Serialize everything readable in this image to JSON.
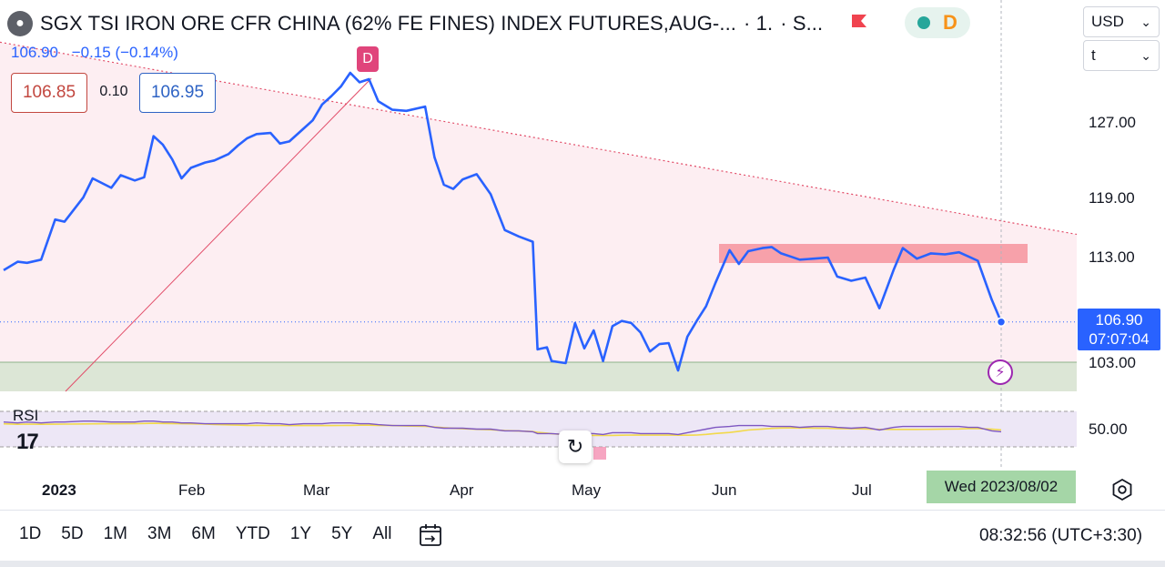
{
  "header": {
    "title": "SGX TSI IRON ORE CFR CHINA (62% FE FINES) INDEX FUTURES,AUG-...",
    "interval": "· 1.",
    "extra": "· S...",
    "last_price": "106.90",
    "change": "−0.15 (−0.14%)",
    "sell_price": "106.85",
    "spread": "0.10",
    "buy_price": "106.95",
    "status_letter": "D"
  },
  "controls": {
    "currency": "USD",
    "unit": "t"
  },
  "price_axis": {
    "labels": [
      "127.00",
      "119.00",
      "113.00",
      "103.00"
    ],
    "current_price": "106.90",
    "countdown": "07:07:04",
    "rsi_label": "50.00"
  },
  "time_axis": {
    "labels": [
      "2023",
      "Feb",
      "Mar",
      "Apr",
      "May",
      "Jun",
      "Jul"
    ],
    "cursor_date": "Wed 2023/08/02"
  },
  "indicators": {
    "rsi_title": "RSI",
    "dividend_badge": "D"
  },
  "bottom_bar": {
    "periods": [
      "1D",
      "5D",
      "1M",
      "3M",
      "6M",
      "YTD",
      "1Y",
      "5Y",
      "All"
    ],
    "clock": "08:32:56 (UTC+3:30)"
  },
  "colors": {
    "price_line": "#2962ff",
    "rsi_line": "#7e57c2",
    "rsi_ma": "#f2d94a",
    "zone_pink": "#fdeef2",
    "zone_green": "#dce6d6",
    "resistance_box": "#f7a1aa",
    "trend_line": "#e24d69"
  },
  "chart_data": {
    "type": "line",
    "ylim": [
      101.5,
      133
    ],
    "x": [
      "2023-01-01",
      "2023-01-04",
      "2023-01-06",
      "2023-01-09",
      "2023-01-12",
      "2023-01-14",
      "2023-01-18",
      "2023-01-20",
      "2023-01-24",
      "2023-01-26",
      "2023-01-29",
      "2023-01-31",
      "2023-02-02",
      "2023-02-04",
      "2023-02-06",
      "2023-02-08",
      "2023-02-10",
      "2023-02-13",
      "2023-02-15",
      "2023-02-18",
      "2023-02-20",
      "2023-02-22",
      "2023-02-24",
      "2023-02-27",
      "2023-03-01",
      "2023-03-03",
      "2023-03-06",
      "2023-03-08",
      "2023-03-10",
      "2023-03-12",
      "2023-03-14",
      "2023-03-16",
      "2023-03-18",
      "2023-03-20",
      "2023-03-22",
      "2023-03-25",
      "2023-03-28",
      "2023-04-01",
      "2023-04-03",
      "2023-04-05",
      "2023-04-07",
      "2023-04-09",
      "2023-04-12",
      "2023-04-15",
      "2023-04-18",
      "2023-04-21",
      "2023-04-24",
      "2023-04-25",
      "2023-04-27",
      "2023-04-28",
      "2023-05-01",
      "2023-05-03",
      "2023-05-05",
      "2023-05-07",
      "2023-05-09",
      "2023-05-11",
      "2023-05-13",
      "2023-05-15",
      "2023-05-17",
      "2023-05-19",
      "2023-05-21",
      "2023-05-23",
      "2023-05-25",
      "2023-05-27",
      "2023-05-29",
      "2023-05-31",
      "2023-06-02",
      "2023-06-05",
      "2023-06-07",
      "2023-06-09",
      "2023-06-12",
      "2023-06-14",
      "2023-06-16",
      "2023-06-18",
      "2023-06-20",
      "2023-06-23",
      "2023-06-26",
      "2023-06-28",
      "2023-07-01",
      "2023-07-04",
      "2023-07-07",
      "2023-07-10",
      "2023-07-12",
      "2023-07-15",
      "2023-07-18",
      "2023-07-21",
      "2023-07-24",
      "2023-07-26",
      "2023-07-28",
      "2023-07-31",
      "2023-08-02"
    ],
    "series": [
      {
        "values": [
          111.8,
          112.6,
          112.5,
          112.8,
          116.6,
          116.4,
          118.7,
          120.5,
          119.6,
          120.8,
          120.3,
          120.6,
          124.5,
          123.7,
          122.3,
          120.5,
          121.5,
          122.0,
          122.2,
          122.8,
          123.6,
          124.3,
          124.7,
          124.8,
          123.8,
          124.0,
          125.2,
          126.0,
          127.5,
          128.3,
          129.2,
          130.5,
          129.6,
          129.9,
          127.8,
          127.0,
          126.9,
          127.3,
          122.5,
          119.9,
          119.5,
          120.4,
          120.9,
          119.0,
          115.6,
          115.0,
          114.5,
          104.3,
          104.5,
          103.2,
          103.0,
          106.8,
          104.4,
          106.1,
          103.2,
          106.5,
          107.0,
          106.8,
          105.9,
          104.1,
          104.8,
          104.9,
          102.3,
          105.5,
          107.0,
          108.4,
          110.6,
          113.7,
          112.4,
          113.6,
          113.9,
          114.0,
          113.4,
          113.1,
          112.8,
          112.9,
          113.0,
          111.2,
          110.8,
          111.1,
          108.2,
          111.8,
          113.9,
          112.9,
          113.4,
          113.3,
          113.5,
          113.1,
          112.7,
          109.0,
          106.9
        ]
      }
    ],
    "rsi": [
      58,
      57,
      58,
      57,
      58,
      58,
      59,
      59,
      58,
      58,
      58,
      59,
      59,
      58,
      58,
      57,
      57,
      56,
      56,
      56,
      56,
      56,
      57,
      56,
      56,
      55,
      56,
      56,
      56,
      57,
      57,
      57,
      56,
      56,
      55,
      54,
      54,
      54,
      52,
      51,
      51,
      51,
      50,
      50,
      48,
      48,
      47,
      45,
      45,
      45,
      44,
      46,
      45,
      45,
      44,
      46,
      46,
      46,
      45,
      45,
      45,
      45,
      44,
      46,
      48,
      50,
      52,
      53,
      54,
      54,
      54,
      53,
      53,
      53,
      52,
      53,
      53,
      52,
      51,
      52,
      49,
      52,
      53,
      53,
      53,
      53,
      53,
      52,
      52,
      48,
      47
    ],
    "rsi_levels": [
      70,
      30
    ]
  }
}
